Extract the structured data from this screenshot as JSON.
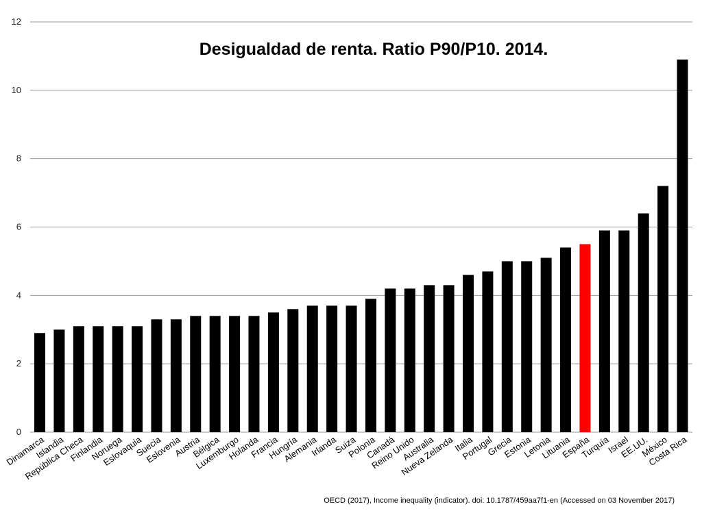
{
  "chart_data": {
    "type": "bar",
    "title": "Desigualdad de renta. Ratio P90/P10. 2014.",
    "xlabel": "",
    "ylabel": "",
    "ylim": [
      0,
      12
    ],
    "yticks": [
      0,
      2,
      4,
      6,
      8,
      10,
      12
    ],
    "grid": true,
    "categories": [
      "Dinamarca",
      "Islandia",
      "República Checa",
      "Finlandia",
      "Noruega",
      "Eslovaquia",
      "Suecia",
      "Eslovenia",
      "Austria",
      "Bélgica",
      "Luxemburgo",
      "Holanda",
      "Francia",
      "Hungría",
      "Alemania",
      "Irlanda",
      "Suiza",
      "Polonia",
      "Canadá",
      "Reino Unido",
      "Australia",
      "Nueva Zelanda",
      "Italia",
      "Portugal",
      "Grecia",
      "Estonia",
      "Letonia",
      "Lituania",
      "España",
      "Turquía",
      "Israel",
      "EE.UU.",
      "México",
      "Costa Rica"
    ],
    "values": [
      2.9,
      3.0,
      3.1,
      3.1,
      3.1,
      3.1,
      3.3,
      3.3,
      3.4,
      3.4,
      3.4,
      3.4,
      3.5,
      3.6,
      3.7,
      3.7,
      3.7,
      3.9,
      4.2,
      4.2,
      4.3,
      4.3,
      4.6,
      4.7,
      5.0,
      5.0,
      5.1,
      5.4,
      5.5,
      5.9,
      5.9,
      6.4,
      7.2,
      10.9
    ],
    "bar_color": "#000000",
    "highlight_category": "España",
    "highlight_color": "#ff0000",
    "grid_color": "#999999",
    "source": "OECD (2017), Income inequality (indicator). doi: 10.1787/459aa7f1-en (Accessed on 03 November 2017)"
  }
}
